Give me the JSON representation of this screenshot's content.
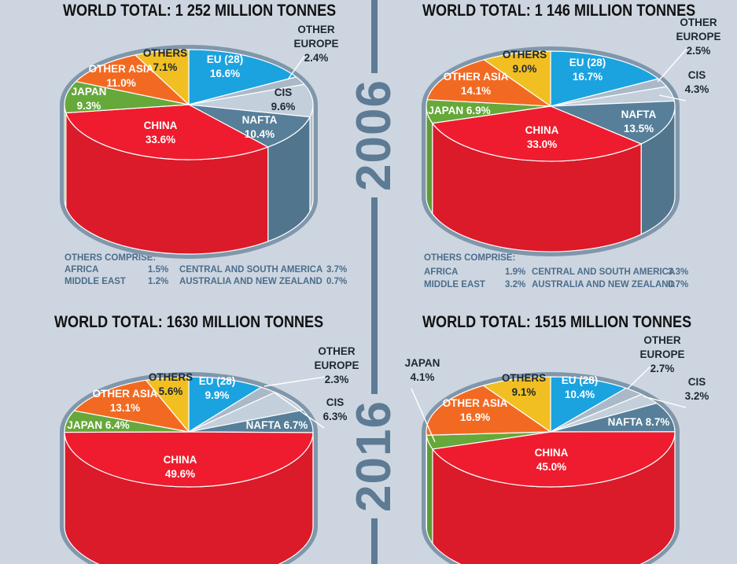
{
  "years": [
    "2006",
    "2016"
  ],
  "notes": {
    "2006_left": {
      "heading": "OTHERS COMPRISE:",
      "rows": [
        [
          "AFRICA",
          "1.5%",
          "CENTRAL AND SOUTH AMERICA",
          "3.7%"
        ],
        [
          "MIDDLE EAST",
          "1.2%",
          "AUSTRALIA AND NEW ZEALAND",
          "0.7%"
        ]
      ]
    },
    "2006_right": {
      "heading": "OTHERS COMPRISE:",
      "rows": [
        [
          "AFRICA",
          "1.9%",
          "CENTRAL AND SOUTH AMERICA",
          "3.3%"
        ],
        [
          "MIDDLE EAST",
          "3.2%",
          "AUSTRALIA AND NEW ZEALAND",
          "0.7%"
        ]
      ]
    }
  },
  "colors": {
    "EU (28)": "#1ba3e0",
    "OTHER EUROPE": "#aab9c8",
    "CIS": "#c3cfdb",
    "NAFTA": "#577f99",
    "CHINA": "#ee1c2e",
    "JAPAN": "#66a83a",
    "OTHER ASIA": "#f26a22",
    "OTHERS": "#f2bf22",
    "rim": "#8097ab",
    "background": "#cdd6e0",
    "divider": "#5e7b95"
  },
  "chart_data": [
    {
      "type": "pie",
      "title": "WORLD TOTAL: 1 252 MILLION TONNES",
      "year": "2006",
      "slices": [
        {
          "label": "EU (28)",
          "value": 16.6,
          "text": "16.6%"
        },
        {
          "label": "OTHER EUROPE",
          "value": 2.4,
          "text": "2.4%"
        },
        {
          "label": "CIS",
          "value": 9.6,
          "text": "9.6%"
        },
        {
          "label": "NAFTA",
          "value": 10.4,
          "text": "10.4%"
        },
        {
          "label": "CHINA",
          "value": 33.6,
          "text": "33.6%"
        },
        {
          "label": "JAPAN",
          "value": 9.3,
          "text": "9.3%"
        },
        {
          "label": "OTHER ASIA",
          "value": 11.0,
          "text": "11.0%"
        },
        {
          "label": "OTHERS",
          "value": 7.1,
          "text": "7.1%"
        }
      ]
    },
    {
      "type": "pie",
      "title": "WORLD TOTAL: 1 146 MILLION TONNES",
      "year": "2006",
      "slices": [
        {
          "label": "EU (28)",
          "value": 16.7,
          "text": "16.7%"
        },
        {
          "label": "OTHER EUROPE",
          "value": 2.5,
          "text": "2.5%"
        },
        {
          "label": "CIS",
          "value": 4.3,
          "text": "4.3%"
        },
        {
          "label": "NAFTA",
          "value": 13.5,
          "text": "13.5%"
        },
        {
          "label": "CHINA",
          "value": 33.0,
          "text": "33.0%"
        },
        {
          "label": "JAPAN",
          "value": 6.9,
          "text": "6.9%"
        },
        {
          "label": "OTHER ASIA",
          "value": 14.1,
          "text": "14.1%"
        },
        {
          "label": "OTHERS",
          "value": 9.0,
          "text": "9.0%"
        }
      ]
    },
    {
      "type": "pie",
      "title": "WORLD TOTAL: 1630 MILLION TONNES",
      "year": "2016",
      "slices": [
        {
          "label": "EU (28)",
          "value": 9.9,
          "text": "9.9%"
        },
        {
          "label": "OTHER EUROPE",
          "value": 2.3,
          "text": "2.3%"
        },
        {
          "label": "CIS",
          "value": 6.3,
          "text": "6.3%"
        },
        {
          "label": "NAFTA",
          "value": 6.7,
          "text": "6.7%"
        },
        {
          "label": "CHINA",
          "value": 49.6,
          "text": "49.6%"
        },
        {
          "label": "JAPAN",
          "value": 6.4,
          "text": "6.4%"
        },
        {
          "label": "OTHER ASIA",
          "value": 13.1,
          "text": "13.1%"
        },
        {
          "label": "OTHERS",
          "value": 5.6,
          "text": "5.6%"
        }
      ]
    },
    {
      "type": "pie",
      "title": "WORLD TOTAL: 1515 MILLION TONNES",
      "year": "2016",
      "slices": [
        {
          "label": "EU (28)",
          "value": 10.4,
          "text": "10.4%"
        },
        {
          "label": "OTHER EUROPE",
          "value": 2.7,
          "text": "2.7%"
        },
        {
          "label": "CIS",
          "value": 3.2,
          "text": "3.2%"
        },
        {
          "label": "NAFTA",
          "value": 8.7,
          "text": "8.7%"
        },
        {
          "label": "CHINA",
          "value": 45.0,
          "text": "45.0%"
        },
        {
          "label": "JAPAN",
          "value": 4.1,
          "text": "4.1%"
        },
        {
          "label": "OTHER ASIA",
          "value": 16.9,
          "text": "16.9%"
        },
        {
          "label": "OTHERS",
          "value": 9.1,
          "text": "9.1%"
        }
      ]
    }
  ]
}
